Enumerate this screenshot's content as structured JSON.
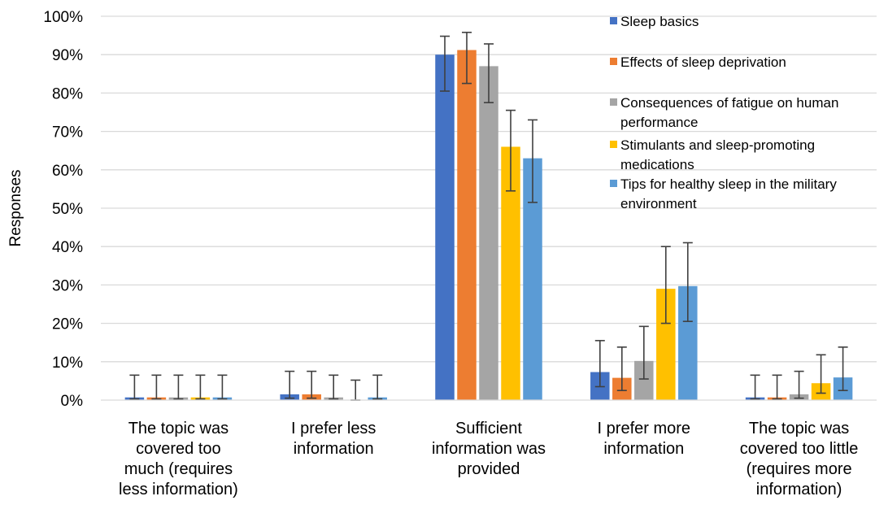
{
  "chart_data": {
    "type": "bar",
    "title": "",
    "xlabel": "",
    "ylabel": "Responses",
    "ylim": [
      0,
      100
    ],
    "yticks": [
      "0%",
      "10%",
      "20%",
      "30%",
      "40%",
      "50%",
      "60%",
      "70%",
      "80%",
      "90%",
      "100%"
    ],
    "grid": true,
    "legend_position": "top-right",
    "categories": [
      [
        "The topic was",
        "covered too",
        "much (requires",
        "less information)"
      ],
      [
        "I prefer less",
        "information"
      ],
      [
        "Sufficient",
        "information was",
        "provided"
      ],
      [
        "I prefer more",
        "information"
      ],
      [
        "The topic was",
        "covered too little",
        "(requires more",
        "information)"
      ]
    ],
    "series": [
      {
        "name": "Sleep basics",
        "legend_lines": [
          "Sleep basics"
        ],
        "color": "#4472C4",
        "values": [
          0.7,
          1.5,
          90.0,
          7.3,
          0.7
        ],
        "err_low": [
          0.3,
          0.5,
          80.5,
          3.5,
          0.3
        ],
        "err_high": [
          6.5,
          7.5,
          94.8,
          15.5,
          6.5
        ]
      },
      {
        "name": "Effects of sleep deprivation",
        "legend_lines": [
          "Effects of sleep deprivation"
        ],
        "color": "#ED7D31",
        "values": [
          0.7,
          1.5,
          91.2,
          5.8,
          0.7
        ],
        "err_low": [
          0.3,
          0.5,
          82.5,
          2.5,
          0.3
        ],
        "err_high": [
          6.5,
          7.5,
          95.8,
          13.8,
          6.5
        ]
      },
      {
        "name": "Consequences of fatigue on human performance",
        "legend_lines": [
          "Consequences of fatigue on human",
          "performance"
        ],
        "color": "#A5A5A5",
        "values": [
          0.7,
          0.7,
          87.0,
          10.2,
          1.5
        ],
        "err_low": [
          0.3,
          0.3,
          77.5,
          5.5,
          0.5
        ],
        "err_high": [
          6.5,
          6.5,
          92.8,
          19.2,
          7.5
        ]
      },
      {
        "name": "Stimulants and sleep-promoting medications",
        "legend_lines": [
          "Stimulants  and sleep-promoting",
          "medications"
        ],
        "color": "#FFC000",
        "values": [
          0.7,
          0.0,
          66.0,
          29.0,
          4.4
        ],
        "err_low": [
          0.3,
          0.0,
          54.5,
          20.0,
          1.8
        ],
        "err_high": [
          6.5,
          5.2,
          75.5,
          40.0,
          11.8
        ]
      },
      {
        "name": "Tips for healthy sleep in the military environment",
        "legend_lines": [
          "Tips for healthy sleep in the military",
          "environment"
        ],
        "color": "#5B9BD5",
        "values": [
          0.7,
          0.7,
          63.0,
          29.7,
          5.9
        ],
        "err_low": [
          0.3,
          0.3,
          51.5,
          20.5,
          2.5
        ],
        "err_high": [
          6.5,
          6.5,
          73.0,
          41.0,
          13.8
        ]
      }
    ]
  }
}
